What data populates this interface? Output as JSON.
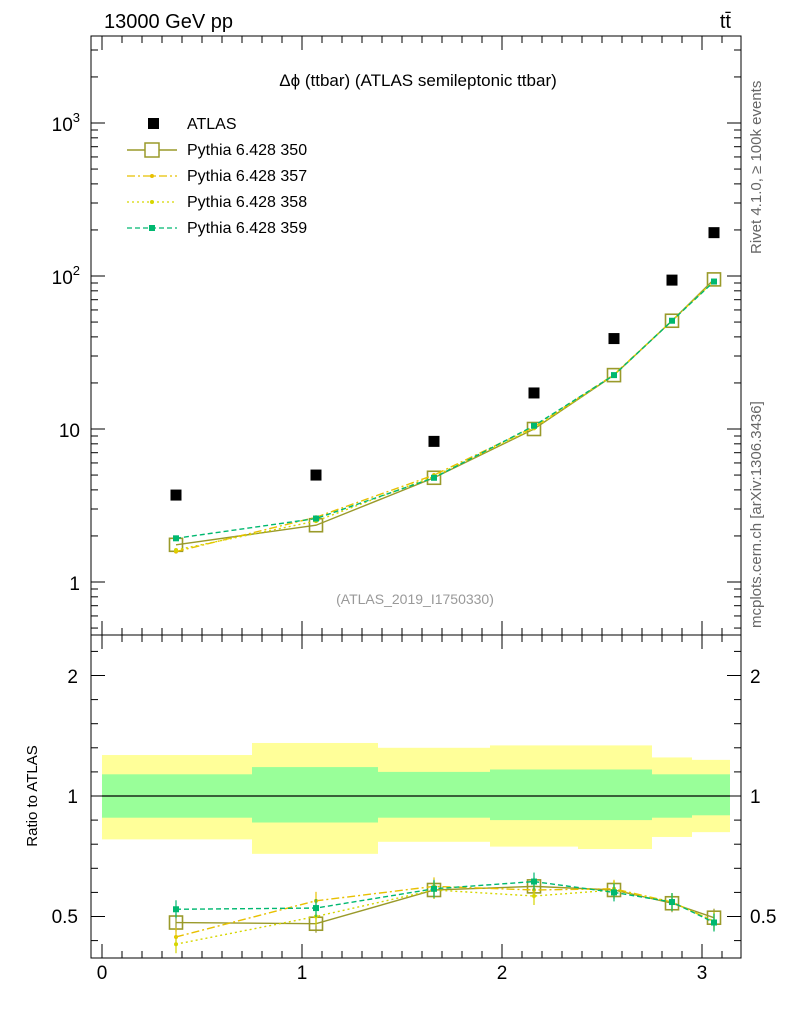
{
  "header": {
    "energy": "13000 GeV pp",
    "process": "tt̄"
  },
  "side_labels": {
    "rivet": "Rivet 4.1.0, ≥ 100k events",
    "site": "mcplots.cern.ch [arXiv:1306.3436]"
  },
  "chart_data": {
    "type": "line",
    "title": "Δϕ (ttbar) (ATLAS semileptonic ttbar)",
    "watermark": "(ATLAS_2019_I1750330)",
    "xlabel": "",
    "ylabel": "",
    "xlim": [
      -0.05,
      3.2
    ],
    "ylim_main": [
      0.45,
      5000
    ],
    "yscale_main": "log",
    "ylim_ratio": [
      0.4,
      2.3
    ],
    "ratio_ylabel": "Ratio to ATLAS",
    "x_ticks": [
      "0",
      "1",
      "2",
      "3"
    ],
    "y_ticks_main": [
      "1",
      "10",
      "10^2",
      "10^3"
    ],
    "y_ticks_ratio": [
      "0.5",
      "1",
      "2"
    ],
    "x": [
      0.37,
      1.07,
      1.66,
      2.16,
      2.56,
      2.85,
      3.06
    ],
    "bin_edges": [
      0.0,
      0.75,
      1.38,
      1.94,
      2.38,
      2.75,
      2.95,
      3.14
    ],
    "band_inner": [
      [
        0.91,
        1.09
      ],
      [
        0.89,
        1.12
      ],
      [
        0.91,
        1.1
      ],
      [
        0.9,
        1.11
      ],
      [
        0.9,
        1.11
      ],
      [
        0.91,
        1.09
      ],
      [
        0.92,
        1.09
      ]
    ],
    "band_outer": [
      [
        0.82,
        1.17
      ],
      [
        0.76,
        1.22
      ],
      [
        0.81,
        1.2
      ],
      [
        0.79,
        1.21
      ],
      [
        0.78,
        1.21
      ],
      [
        0.83,
        1.16
      ],
      [
        0.85,
        1.15
      ]
    ],
    "series": [
      {
        "name": "ATLAS",
        "role": "data",
        "color": "#000000",
        "values": [
          3.7,
          5.0,
          8.3,
          17.2,
          39.0,
          94.0,
          192.0
        ]
      },
      {
        "name": "Pythia 6.428 350",
        "color": "#9a9a2a",
        "line": "solid",
        "marker": "open-square",
        "values": [
          1.75,
          2.35,
          4.8,
          10.0,
          22.5,
          51.0,
          95.0
        ],
        "ratio": [
          0.475,
          0.47,
          0.61,
          0.625,
          0.61,
          0.555,
          0.495
        ]
      },
      {
        "name": "Pythia 6.428 357",
        "color": "#e8c000",
        "line": "dashdot",
        "marker": "small-dot",
        "values": [
          1.58,
          2.65,
          5.0,
          10.3,
          22.7,
          51.0,
          93.0
        ],
        "ratio": [
          0.415,
          0.565,
          0.625,
          0.61,
          0.615,
          0.56,
          0.48
        ]
      },
      {
        "name": "Pythia 6.428 358",
        "color": "#d6d600",
        "line": "dotted",
        "marker": "small-dot",
        "values": [
          1.62,
          2.5,
          4.9,
          10.1,
          22.6,
          51.0,
          93.0
        ],
        "ratio": [
          0.385,
          0.5,
          0.61,
          0.585,
          0.61,
          0.56,
          0.48
        ]
      },
      {
        "name": "Pythia 6.428 359",
        "color": "#00b870",
        "line": "dashed",
        "marker": "filled-square",
        "values": [
          1.93,
          2.6,
          4.8,
          10.5,
          22.5,
          51.0,
          92.0
        ],
        "ratio": [
          0.53,
          0.535,
          0.615,
          0.645,
          0.6,
          0.56,
          0.475
        ]
      }
    ]
  }
}
